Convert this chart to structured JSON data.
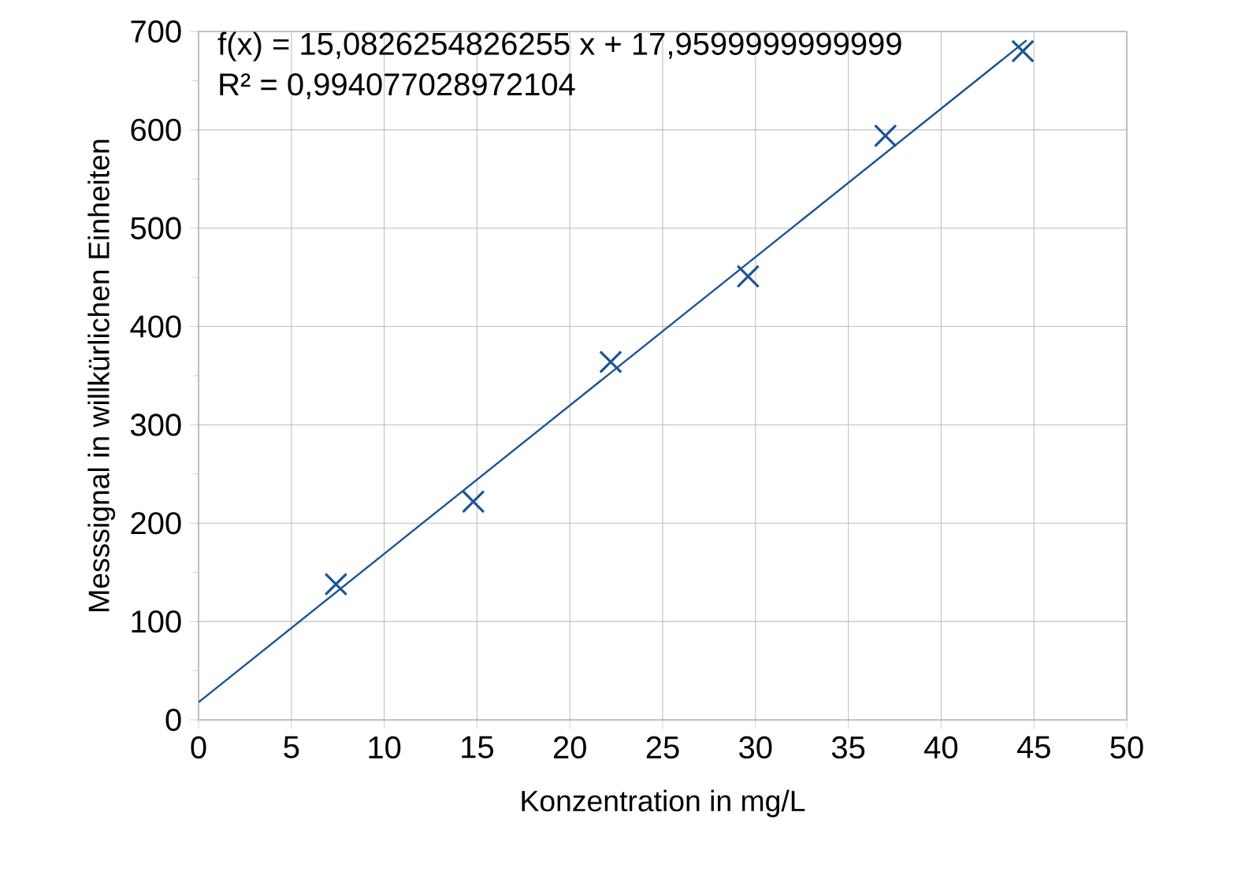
{
  "chart_data": {
    "type": "scatter",
    "xlabel": "Konzentration in mg/L",
    "ylabel": "Messsignal in willkürlichen Einheiten",
    "annotations": [
      "f(x) = 15,0826254826255 x + 17,9599999999999",
      "R² = 0,994077028972104"
    ],
    "xlim": [
      0,
      50
    ],
    "ylim": [
      0,
      700
    ],
    "xticks": [
      0,
      5,
      10,
      15,
      20,
      25,
      30,
      35,
      40,
      45,
      50
    ],
    "yticks": [
      0,
      100,
      200,
      300,
      400,
      500,
      600,
      700
    ],
    "grid": true,
    "series": [
      {
        "color": "#1a5496",
        "marker": "cross",
        "x": [
          7.4,
          14.8,
          22.2,
          29.6,
          37.0,
          44.4
        ],
        "values": [
          138,
          222,
          364,
          451,
          594,
          680
        ]
      },
      {
        "type": "line",
        "color": "#1a5496",
        "x": [
          0,
          44.6
        ],
        "values": [
          18,
          691
        ]
      }
    ]
  }
}
